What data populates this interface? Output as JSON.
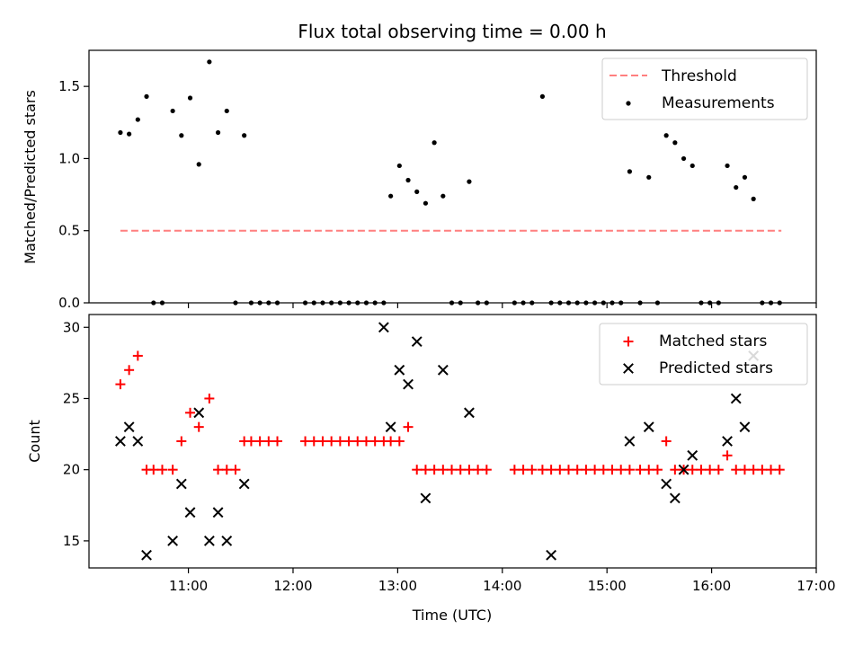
{
  "title": "Flux total observing time = 0.00 h",
  "colors": {
    "threshold": "#ff7f7f",
    "measurement": "#000000",
    "matched": "#ff0000",
    "predicted": "#000000"
  },
  "chart_data": [
    {
      "type": "scatter",
      "ylabel": "Matched/Predicted stars",
      "xlim": [
        "10:03",
        "17:00"
      ],
      "ylim": [
        0,
        1.75
      ],
      "yticks": [
        0.0,
        0.5,
        1.0,
        1.5
      ],
      "grid": false,
      "legend": {
        "position": "top-right",
        "entries": [
          "Threshold",
          "Measurements"
        ]
      },
      "series": [
        {
          "name": "Threshold",
          "kind": "dashed-line",
          "x": [
            "10:21",
            "16:40"
          ],
          "y": [
            0.5,
            0.5
          ]
        },
        {
          "name": "Measurements",
          "kind": "dot",
          "x": [
            "10:21",
            "10:26",
            "10:31",
            "10:36",
            "10:40",
            "10:45",
            "10:51",
            "10:56",
            "11:01",
            "11:06",
            "11:12",
            "11:17",
            "11:22",
            "11:27",
            "11:32",
            "11:36",
            "11:41",
            "11:46",
            "11:51",
            "12:07",
            "12:12",
            "12:17",
            "12:22",
            "12:27",
            "12:32",
            "12:37",
            "12:42",
            "12:47",
            "12:52",
            "12:56",
            "13:01",
            "13:06",
            "13:11",
            "13:16",
            "13:21",
            "13:26",
            "13:31",
            "13:36",
            "13:41",
            "13:46",
            "13:51",
            "14:07",
            "14:12",
            "14:17",
            "14:23",
            "14:28",
            "14:33",
            "14:38",
            "14:43",
            "14:48",
            "14:53",
            "14:58",
            "15:03",
            "15:08",
            "15:13",
            "15:19",
            "15:24",
            "15:29",
            "15:34",
            "15:39",
            "15:44",
            "15:49",
            "15:54",
            "15:59",
            "16:04",
            "16:09",
            "16:14",
            "16:19",
            "16:24",
            "16:29",
            "16:34",
            "16:39"
          ],
          "y": [
            1.18,
            1.17,
            1.27,
            1.43,
            0.0,
            0.0,
            1.33,
            1.16,
            1.42,
            0.96,
            1.67,
            1.18,
            1.33,
            0.0,
            1.16,
            0.0,
            0.0,
            0.0,
            0.0,
            0.0,
            0.0,
            0.0,
            0.0,
            0.0,
            0.0,
            0.0,
            0.0,
            0.0,
            0.0,
            0.74,
            0.95,
            0.85,
            0.77,
            0.69,
            1.11,
            0.74,
            0.0,
            0.0,
            0.84,
            0.0,
            0.0,
            0.0,
            0.0,
            0.0,
            1.43,
            0.0,
            0.0,
            0.0,
            0.0,
            0.0,
            0.0,
            0.0,
            0.0,
            0.0,
            0.91,
            0.0,
            0.87,
            0.0,
            1.16,
            1.11,
            1.0,
            0.95,
            0.0,
            0.0,
            0.0,
            0.95,
            0.8,
            0.87,
            0.72,
            0.0,
            0.0,
            0.0
          ]
        }
      ]
    },
    {
      "type": "scatter",
      "ylabel": "Count",
      "xlabel": "Time (UTC)",
      "xlim": [
        "10:03",
        "17:00"
      ],
      "xticks": [
        "11:00",
        "12:00",
        "13:00",
        "14:00",
        "15:00",
        "16:00",
        "17:00"
      ],
      "ylim": [
        13.1,
        30.9
      ],
      "yticks": [
        15,
        20,
        25,
        30
      ],
      "grid": false,
      "legend": {
        "position": "top-right",
        "entries": [
          "Matched stars",
          "Predicted stars"
        ]
      },
      "series": [
        {
          "name": "Matched stars",
          "kind": "plus",
          "x": [
            "10:21",
            "10:26",
            "10:31",
            "10:36",
            "10:40",
            "10:45",
            "10:51",
            "10:56",
            "11:01",
            "11:06",
            "11:12",
            "11:17",
            "11:22",
            "11:27",
            "11:32",
            "11:36",
            "11:41",
            "11:46",
            "11:51",
            "12:07",
            "12:12",
            "12:17",
            "12:22",
            "12:27",
            "12:32",
            "12:37",
            "12:42",
            "12:47",
            "12:52",
            "12:56",
            "13:01",
            "13:06",
            "13:11",
            "13:16",
            "13:21",
            "13:26",
            "13:31",
            "13:36",
            "13:41",
            "13:46",
            "13:51",
            "14:07",
            "14:12",
            "14:17",
            "14:23",
            "14:28",
            "14:33",
            "14:38",
            "14:43",
            "14:48",
            "14:53",
            "14:58",
            "15:03",
            "15:08",
            "15:13",
            "15:19",
            "15:24",
            "15:29",
            "15:34",
            "15:39",
            "15:44",
            "15:49",
            "15:54",
            "15:59",
            "16:04",
            "16:09",
            "16:14",
            "16:19",
            "16:24",
            "16:29",
            "16:34",
            "16:39"
          ],
          "y": [
            26,
            27,
            28,
            20,
            20,
            20,
            20,
            22,
            24,
            23,
            25,
            20,
            20,
            20,
            22,
            22,
            22,
            22,
            22,
            22,
            22,
            22,
            22,
            22,
            22,
            22,
            22,
            22,
            22,
            22,
            22,
            23,
            20,
            20,
            20,
            20,
            20,
            20,
            20,
            20,
            20,
            20,
            20,
            20,
            20,
            20,
            20,
            20,
            20,
            20,
            20,
            20,
            20,
            20,
            20,
            20,
            20,
            20,
            22,
            20,
            20,
            20,
            20,
            20,
            20,
            21,
            20,
            20,
            20,
            20,
            20,
            20
          ]
        },
        {
          "name": "Predicted stars",
          "kind": "x",
          "x": [
            "10:21",
            "10:26",
            "10:31",
            "10:36",
            "10:51",
            "10:56",
            "11:01",
            "11:06",
            "11:12",
            "11:17",
            "11:22",
            "11:32",
            "12:52",
            "12:56",
            "13:01",
            "13:06",
            "13:11",
            "13:16",
            "13:26",
            "13:41",
            "14:28",
            "15:13",
            "15:24",
            "15:34",
            "15:39",
            "15:44",
            "15:49",
            "16:09",
            "16:14",
            "16:19",
            "16:24"
          ],
          "y": [
            22,
            23,
            22,
            14,
            15,
            19,
            17,
            24,
            15,
            17,
            15,
            19,
            30,
            23,
            27,
            26,
            29,
            18,
            27,
            24,
            14,
            22,
            23,
            19,
            18,
            20,
            21,
            22,
            25,
            23,
            28
          ]
        }
      ]
    }
  ]
}
